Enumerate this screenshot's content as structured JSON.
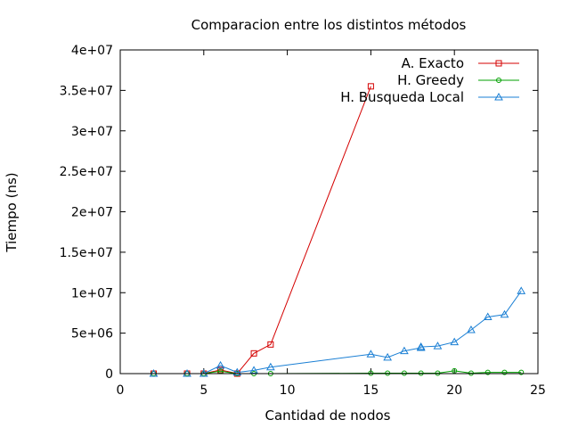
{
  "chart_data": {
    "type": "line",
    "title": "Comparacion entre los distintos métodos",
    "xlabel": "Cantidad de nodos",
    "ylabel": "Tiempo (ns)",
    "xlim": [
      0,
      25
    ],
    "ylim": [
      0,
      40000000
    ],
    "xticks": [
      0,
      5,
      10,
      15,
      20,
      25
    ],
    "xtick_labels": [
      "0",
      "5",
      "10",
      "15",
      "20",
      "25"
    ],
    "yticks": [
      0,
      5000000,
      10000000,
      15000000,
      20000000,
      25000000,
      30000000,
      35000000,
      40000000
    ],
    "ytick_labels": [
      "0",
      "5e+06",
      "1e+07",
      "1.5e+07",
      "2e+07",
      "2.5e+07",
      "3e+07",
      "3.5e+07",
      "4e+07"
    ],
    "grid": false,
    "legend_position": "top-right",
    "series": [
      {
        "name": "A. Exacto",
        "color": "#d40000",
        "marker": "square",
        "x": [
          2,
          4,
          5,
          6,
          7,
          8,
          9,
          15
        ],
        "y": [
          0,
          0,
          0,
          450000,
          0,
          2500000,
          3600000,
          35500000
        ]
      },
      {
        "name": "H. Greedy",
        "color": "#00a000",
        "marker": "circle",
        "x": [
          2,
          4,
          5,
          6,
          7,
          8,
          9,
          15,
          16,
          17,
          18,
          19,
          20,
          21,
          22,
          23,
          24
        ],
        "y": [
          0,
          0,
          0,
          300000,
          0,
          0,
          0,
          50000,
          50000,
          50000,
          50000,
          50000,
          350000,
          50000,
          150000,
          150000,
          150000
        ]
      },
      {
        "name": "H. Busqueda Local",
        "color": "#1a7fd4",
        "marker": "triangle",
        "x": [
          2,
          4,
          5,
          6,
          7,
          8,
          9,
          15,
          16,
          17,
          18,
          18,
          19,
          20,
          21,
          22,
          23,
          24
        ],
        "y": [
          0,
          0,
          0,
          1000000,
          150000,
          400000,
          800000,
          2400000,
          2000000,
          2800000,
          3200000,
          3300000,
          3400000,
          3900000,
          5400000,
          7000000,
          7300000,
          10200000
        ]
      }
    ]
  }
}
